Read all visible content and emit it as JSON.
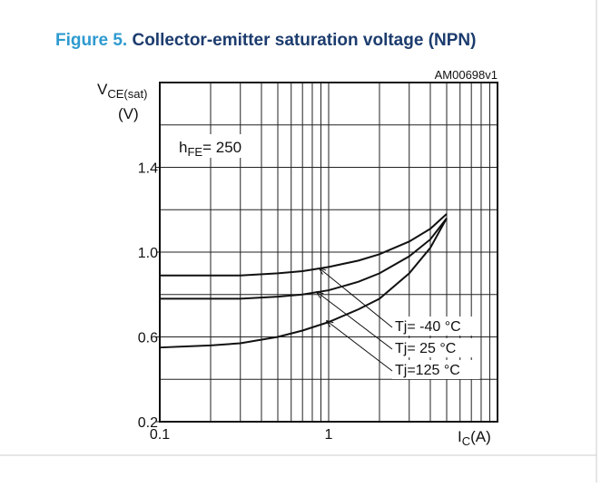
{
  "chart_data": {
    "type": "line",
    "figure_number": "Figure 5.",
    "title": "Collector-emitter saturation voltage (NPN)",
    "code": "AM00698v1",
    "y_label": {
      "symbol": "V",
      "sub": "CE(sat)",
      "unit": "(V)"
    },
    "x_label": {
      "symbol": "I",
      "sub": "C",
      "unit": "(A)"
    },
    "annotation": {
      "symbol": "h",
      "sub": "FE",
      "text": "= 250"
    },
    "xscale": "log",
    "xlim": [
      0.1,
      10
    ],
    "xticks": [
      0.1,
      1
    ],
    "xgrid": [
      0.2,
      0.3,
      0.4,
      0.5,
      0.6,
      0.7,
      0.8,
      0.9,
      2,
      3,
      4,
      5,
      6,
      7,
      8,
      9
    ],
    "ylim": [
      0.2,
      1.8
    ],
    "yticks": [
      0.2,
      0.6,
      {
        "value": 1,
        "label": "1.0"
      },
      1.4
    ],
    "ygrid": [
      0.4,
      0.8,
      1.2,
      1.6
    ],
    "x": [
      0.1,
      0.2,
      0.3,
      0.5,
      0.7,
      1,
      1.5,
      2,
      3,
      4,
      5
    ],
    "series": [
      {
        "name": "Tj= -40 °C",
        "color": "#111111",
        "values": [
          0.89,
          0.89,
          0.89,
          0.9,
          0.91,
          0.93,
          0.96,
          0.99,
          1.05,
          1.11,
          1.18
        ]
      },
      {
        "name": "Tj= 25 °C",
        "color": "#111111",
        "values": [
          0.78,
          0.78,
          0.78,
          0.79,
          0.8,
          0.82,
          0.86,
          0.9,
          0.98,
          1.06,
          1.16
        ]
      },
      {
        "name": "Tj=125 °C",
        "color": "#111111",
        "values": [
          0.55,
          0.56,
          0.57,
          0.6,
          0.63,
          0.67,
          0.73,
          0.78,
          0.9,
          1.02,
          1.16
        ]
      }
    ]
  }
}
